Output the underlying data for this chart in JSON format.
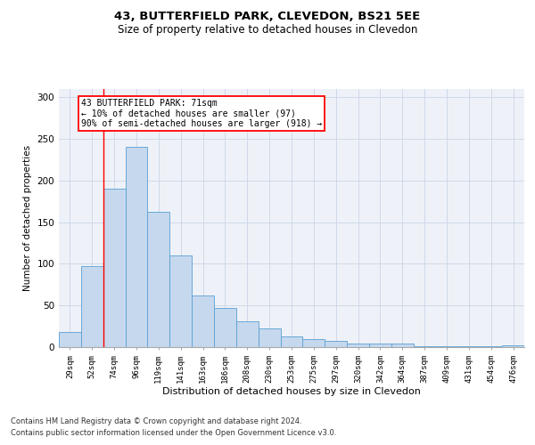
{
  "title1": "43, BUTTERFIELD PARK, CLEVEDON, BS21 5EE",
  "title2": "Size of property relative to detached houses in Clevedon",
  "xlabel": "Distribution of detached houses by size in Clevedon",
  "ylabel": "Number of detached properties",
  "footer1": "Contains HM Land Registry data © Crown copyright and database right 2024.",
  "footer2": "Contains public sector information licensed under the Open Government Licence v3.0.",
  "annotation_line1": "43 BUTTERFIELD PARK: 71sqm",
  "annotation_line2": "← 10% of detached houses are smaller (97)",
  "annotation_line3": "90% of semi-detached houses are larger (918) →",
  "bar_color": "#c5d8ed",
  "bar_edge_color": "#5a9fd4",
  "categories": [
    "29sqm",
    "52sqm",
    "74sqm",
    "96sqm",
    "119sqm",
    "141sqm",
    "163sqm",
    "186sqm",
    "208sqm",
    "230sqm",
    "253sqm",
    "275sqm",
    "297sqm",
    "320sqm",
    "342sqm",
    "364sqm",
    "387sqm",
    "409sqm",
    "431sqm",
    "454sqm",
    "476sqm"
  ],
  "values": [
    18,
    97,
    190,
    241,
    163,
    110,
    62,
    47,
    31,
    22,
    13,
    10,
    7,
    4,
    4,
    4,
    1,
    1,
    1,
    1,
    2
  ],
  "ylim": [
    0,
    310
  ],
  "yticks": [
    0,
    50,
    100,
    150,
    200,
    250,
    300
  ],
  "grid_color": "#d0d8e8",
  "background_color": "#eef2f8"
}
